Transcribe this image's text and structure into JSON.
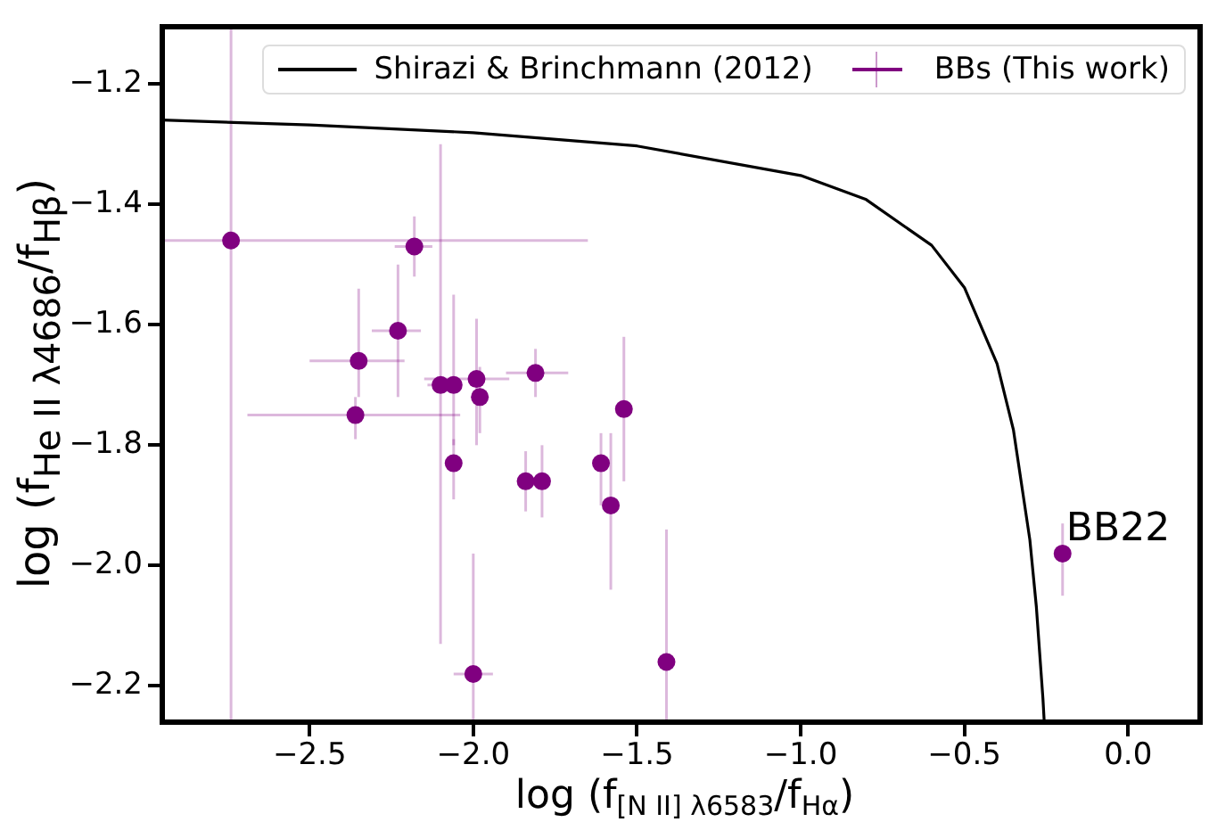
{
  "chart_data": {
    "type": "scatter",
    "xlabel": "log (f$_{[N II] λ6583}$/f$_{Hα}$)",
    "ylabel": "log (f$_{He II λ4686}$/f$_{Hβ}$)",
    "xlim": [
      -2.95,
      0.22
    ],
    "xticks": [
      -2.5,
      {
        "value": -2,
        "label": "−2.0"
      },
      -1.5,
      {
        "value": -1,
        "label": "−1.0"
      },
      -0.5,
      {
        "value": 0,
        "label": "0.0"
      }
    ],
    "ylim": [
      -2.26,
      -1.105
    ],
    "yticks": [
      -2.2,
      {
        "value": -2,
        "label": "−2.0"
      },
      -1.8,
      -1.6,
      -1.4,
      -1.2
    ],
    "grid": false,
    "legend": "top right",
    "marker": "circle",
    "annotations": [
      {
        "text": "BB22",
        "x": -0.2,
        "y": -1.98
      }
    ],
    "series": [
      {
        "name": "Shirazi & Brinchmann (2012)",
        "type": "line",
        "color": "#000000",
        "marker": "none",
        "line_style": "solid",
        "x": [
          -2.95,
          -2.5,
          -2.0,
          -1.5,
          -1.0,
          -0.8,
          -0.6,
          -0.5,
          -0.4,
          -0.35,
          -0.3,
          -0.28,
          -0.26,
          -0.256
        ],
        "values": [
          -1.26,
          -1.268,
          -1.281,
          -1.303,
          -1.352,
          -1.392,
          -1.468,
          -1.538,
          -1.665,
          -1.775,
          -1.957,
          -2.069,
          -2.221,
          -2.26
        ]
      },
      {
        "name": "BBs (This work)",
        "color": "#800080",
        "x": [
          -2.74,
          -2.18,
          -2.23,
          -2.35,
          -2.36,
          -2.1,
          -2.06,
          -2.06,
          -1.99,
          -1.98,
          -1.81,
          -1.84,
          -1.79,
          -1.61,
          -1.58,
          -1.54,
          -2.0,
          -1.41,
          -0.2
        ],
        "values": [
          -1.46,
          -1.47,
          -1.61,
          -1.66,
          -1.75,
          -1.7,
          -1.7,
          -1.83,
          -1.69,
          -1.72,
          -1.68,
          -1.86,
          -1.86,
          -1.83,
          -1.9,
          -1.74,
          -2.18,
          -2.16,
          -1.98
        ],
        "errors": [
          [
            -2.26,
            -1.105
          ],
          [
            -1.52,
            -1.42
          ],
          [
            -1.72,
            -1.5
          ],
          [
            -1.72,
            -1.54
          ],
          [
            -1.79,
            -1.72
          ],
          [
            -2.13,
            -1.3
          ],
          [
            -1.8,
            -1.55
          ],
          [
            -1.89,
            -1.79
          ],
          [
            -1.8,
            -1.59
          ],
          [
            -1.78,
            -1.67
          ],
          [
            -1.72,
            -1.64
          ],
          [
            -1.91,
            -1.81
          ],
          [
            -1.92,
            -1.8
          ],
          [
            -1.9,
            -1.78
          ],
          [
            -2.04,
            -1.78
          ],
          [
            -1.86,
            -1.62
          ],
          [
            -2.26,
            -1.98
          ],
          [
            -2.26,
            -1.94
          ],
          [
            -2.05,
            -1.93
          ]
        ],
        "xerrors": [
          [
            -2.95,
            -1.65
          ],
          [
            -2.24,
            -2.125
          ],
          [
            -2.31,
            -2.16
          ],
          [
            -2.5,
            -2.21
          ],
          [
            -2.69,
            -2.04
          ],
          [
            -2.14,
            -2.09
          ],
          null,
          null,
          [
            -2.15,
            -1.89
          ],
          null,
          [
            -1.9,
            -1.71
          ],
          null,
          null,
          null,
          null,
          null,
          [
            -2.06,
            -1.94
          ],
          null,
          [
            -0.22,
            -0.18
          ]
        ]
      }
    ]
  }
}
